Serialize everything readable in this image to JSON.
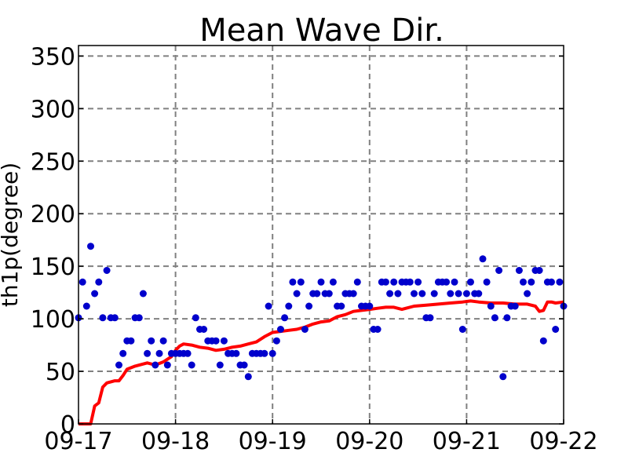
{
  "chart_data": {
    "type": "scatter",
    "title": "Mean Wave Dir.",
    "xlabel": "",
    "ylabel": "th1p(degree)",
    "x_ticks": [
      "09-17",
      "09-18",
      "09-19",
      "09-20",
      "09-21",
      "09-22"
    ],
    "y_ticks": [
      "0",
      "50",
      "100",
      "150",
      "200",
      "250",
      "300",
      "350"
    ],
    "xlim": [
      "2014-09-17 00:00",
      "2014-09-22 00:00"
    ],
    "ylim": [
      0,
      360
    ],
    "grid": true,
    "colors": {
      "points": "#0000cc",
      "line": "#ff0000",
      "grid": "#808080"
    },
    "series": [
      {
        "type": "scatter",
        "points": [
          [
            "09-17 00:00",
            101
          ],
          [
            "09-17 01:00",
            135
          ],
          [
            "09-17 02:00",
            112
          ],
          [
            "09-17 03:00",
            169
          ],
          [
            "09-17 04:00",
            124
          ],
          [
            "09-17 05:00",
            135
          ],
          [
            "09-17 06:00",
            101
          ],
          [
            "09-17 07:00",
            146
          ],
          [
            "09-17 08:00",
            101
          ],
          [
            "09-17 09:00",
            101
          ],
          [
            "09-17 10:00",
            56
          ],
          [
            "09-17 11:00",
            67
          ],
          [
            "09-17 12:00",
            79
          ],
          [
            "09-17 13:00",
            79
          ],
          [
            "09-17 14:00",
            101
          ],
          [
            "09-17 15:00",
            101
          ],
          [
            "09-17 16:00",
            124
          ],
          [
            "09-17 17:00",
            67
          ],
          [
            "09-17 18:00",
            79
          ],
          [
            "09-17 19:00",
            56
          ],
          [
            "09-17 20:00",
            67
          ],
          [
            "09-17 21:00",
            79
          ],
          [
            "09-17 22:00",
            56
          ],
          [
            "09-17 23:00",
            67
          ],
          [
            "09-18 00:00",
            67
          ],
          [
            "09-18 01:00",
            67
          ],
          [
            "09-18 02:00",
            67
          ],
          [
            "09-18 03:00",
            67
          ],
          [
            "09-18 04:00",
            56
          ],
          [
            "09-18 05:00",
            101
          ],
          [
            "09-18 06:00",
            90
          ],
          [
            "09-18 07:00",
            90
          ],
          [
            "09-18 08:00",
            79
          ],
          [
            "09-18 09:00",
            79
          ],
          [
            "09-18 10:00",
            79
          ],
          [
            "09-18 11:00",
            56
          ],
          [
            "09-18 12:00",
            79
          ],
          [
            "09-18 13:00",
            67
          ],
          [
            "09-18 14:00",
            67
          ],
          [
            "09-18 15:00",
            67
          ],
          [
            "09-18 16:00",
            56
          ],
          [
            "09-18 17:00",
            56
          ],
          [
            "09-18 18:00",
            45
          ],
          [
            "09-18 19:00",
            67
          ],
          [
            "09-18 20:00",
            67
          ],
          [
            "09-18 21:00",
            67
          ],
          [
            "09-18 22:00",
            67
          ],
          [
            "09-18 23:00",
            112
          ],
          [
            "09-19 00:00",
            67
          ],
          [
            "09-19 01:00",
            79
          ],
          [
            "09-19 02:00",
            90
          ],
          [
            "09-19 03:00",
            101
          ],
          [
            "09-19 04:00",
            112
          ],
          [
            "09-19 05:00",
            135
          ],
          [
            "09-19 06:00",
            124
          ],
          [
            "09-19 07:00",
            135
          ],
          [
            "09-19 08:00",
            90
          ],
          [
            "09-19 09:00",
            112
          ],
          [
            "09-19 10:00",
            124
          ],
          [
            "09-19 11:00",
            124
          ],
          [
            "09-19 12:00",
            135
          ],
          [
            "09-19 13:00",
            124
          ],
          [
            "09-19 14:00",
            124
          ],
          [
            "09-19 15:00",
            135
          ],
          [
            "09-19 16:00",
            112
          ],
          [
            "09-19 17:00",
            112
          ],
          [
            "09-19 18:00",
            124
          ],
          [
            "09-19 19:00",
            124
          ],
          [
            "09-19 20:00",
            124
          ],
          [
            "09-19 21:00",
            135
          ],
          [
            "09-19 22:00",
            112
          ],
          [
            "09-19 23:00",
            112
          ],
          [
            "09-20 00:00",
            112
          ],
          [
            "09-20 01:00",
            90
          ],
          [
            "09-20 02:00",
            90
          ],
          [
            "09-20 03:00",
            135
          ],
          [
            "09-20 04:00",
            135
          ],
          [
            "09-20 05:00",
            124
          ],
          [
            "09-20 06:00",
            135
          ],
          [
            "09-20 07:00",
            124
          ],
          [
            "09-20 08:00",
            135
          ],
          [
            "09-20 09:00",
            135
          ],
          [
            "09-20 10:00",
            135
          ],
          [
            "09-20 11:00",
            124
          ],
          [
            "09-20 12:00",
            135
          ],
          [
            "09-20 13:00",
            124
          ],
          [
            "09-20 14:00",
            101
          ],
          [
            "09-20 15:00",
            101
          ],
          [
            "09-20 16:00",
            124
          ],
          [
            "09-20 17:00",
            135
          ],
          [
            "09-20 18:00",
            135
          ],
          [
            "09-20 19:00",
            135
          ],
          [
            "09-20 20:00",
            124
          ],
          [
            "09-20 21:00",
            135
          ],
          [
            "09-20 22:00",
            124
          ],
          [
            "09-20 23:00",
            90
          ],
          [
            "09-21 00:00",
            124
          ],
          [
            "09-21 01:00",
            135
          ],
          [
            "09-21 02:00",
            124
          ],
          [
            "09-21 03:00",
            124
          ],
          [
            "09-21 04:00",
            157
          ],
          [
            "09-21 05:00",
            135
          ],
          [
            "09-21 06:00",
            112
          ],
          [
            "09-21 07:00",
            101
          ],
          [
            "09-21 08:00",
            146
          ],
          [
            "09-21 09:00",
            45
          ],
          [
            "09-21 10:00",
            101
          ],
          [
            "09-21 11:00",
            112
          ],
          [
            "09-21 12:00",
            112
          ],
          [
            "09-21 13:00",
            146
          ],
          [
            "09-21 14:00",
            135
          ],
          [
            "09-21 15:00",
            124
          ],
          [
            "09-21 16:00",
            135
          ],
          [
            "09-21 17:00",
            146
          ],
          [
            "09-21 18:00",
            146
          ],
          [
            "09-21 19:00",
            79
          ],
          [
            "09-21 20:00",
            135
          ],
          [
            "09-21 21:00",
            135
          ],
          [
            "09-21 22:00",
            90
          ],
          [
            "09-21 23:00",
            135
          ],
          [
            "09-22 00:00",
            112
          ]
        ]
      },
      {
        "type": "line",
        "points": [
          [
            "09-17 00:00",
            0
          ],
          [
            "09-17 03:00",
            0
          ],
          [
            "09-17 04:00",
            17
          ],
          [
            "09-17 05:00",
            20
          ],
          [
            "09-17 06:00",
            35
          ],
          [
            "09-17 07:00",
            39
          ],
          [
            "09-17 08:00",
            40
          ],
          [
            "09-17 09:00",
            41
          ],
          [
            "09-17 10:00",
            41
          ],
          [
            "09-17 11:00",
            46
          ],
          [
            "09-17 12:00",
            52
          ],
          [
            "09-17 14:00",
            55
          ],
          [
            "09-17 16:00",
            57
          ],
          [
            "09-17 17:00",
            58
          ],
          [
            "09-17 19:00",
            56
          ],
          [
            "09-17 21:00",
            59
          ],
          [
            "09-17 23:00",
            64
          ],
          [
            "09-18 00:00",
            70
          ],
          [
            "09-18 01:00",
            74
          ],
          [
            "09-18 02:00",
            76
          ],
          [
            "09-18 04:00",
            75
          ],
          [
            "09-18 06:00",
            73
          ],
          [
            "09-18 08:00",
            72
          ],
          [
            "09-18 10:00",
            70
          ],
          [
            "09-18 12:00",
            71
          ],
          [
            "09-18 14:00",
            73
          ],
          [
            "09-18 16:00",
            74
          ],
          [
            "09-18 18:00",
            76
          ],
          [
            "09-18 20:00",
            78
          ],
          [
            "09-18 22:00",
            83
          ],
          [
            "09-19 00:00",
            87
          ],
          [
            "09-19 02:00",
            88
          ],
          [
            "09-19 04:00",
            89
          ],
          [
            "09-19 06:00",
            90
          ],
          [
            "09-19 08:00",
            92
          ],
          [
            "09-19 10:00",
            95
          ],
          [
            "09-19 12:00",
            97
          ],
          [
            "09-19 14:00",
            98
          ],
          [
            "09-19 16:00",
            102
          ],
          [
            "09-19 18:00",
            104
          ],
          [
            "09-19 20:00",
            107
          ],
          [
            "09-19 22:00",
            108
          ],
          [
            "09-20 00:00",
            109
          ],
          [
            "09-20 02:00",
            110
          ],
          [
            "09-20 04:00",
            111
          ],
          [
            "09-20 06:00",
            111
          ],
          [
            "09-20 08:00",
            109
          ],
          [
            "09-20 09:00",
            110
          ],
          [
            "09-20 11:00",
            112
          ],
          [
            "09-20 14:00",
            113
          ],
          [
            "09-20 17:00",
            114
          ],
          [
            "09-20 20:00",
            115
          ],
          [
            "09-20 23:00",
            116
          ],
          [
            "09-21 01:00",
            117
          ],
          [
            "09-21 03:00",
            116
          ],
          [
            "09-21 06:00",
            115
          ],
          [
            "09-21 09:00",
            115
          ],
          [
            "09-21 12:00",
            114
          ],
          [
            "09-21 15:00",
            114
          ],
          [
            "09-21 17:00",
            112
          ],
          [
            "09-21 18:00",
            107
          ],
          [
            "09-21 19:00",
            108
          ],
          [
            "09-21 20:00",
            116
          ],
          [
            "09-21 21:00",
            116
          ],
          [
            "09-21 22:00",
            115
          ],
          [
            "09-22 00:00",
            116
          ]
        ]
      }
    ]
  }
}
